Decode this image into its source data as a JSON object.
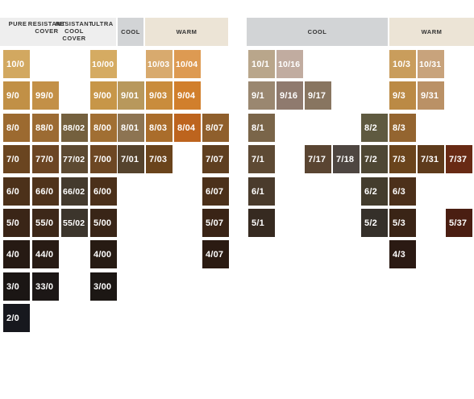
{
  "headers": {
    "pure": "PURE",
    "resistant_cover": "RESISTANT COVER",
    "resistant_cool_cover": "RESISTANT COOL COVER",
    "ultra": "ULTRA",
    "cool_left": "COOL",
    "warm_left": "WARM",
    "cool_right": "COOL",
    "warm_right": "WARM"
  },
  "header_colors": {
    "white": "#eeeeee",
    "cool": "#d2d4d6",
    "warm": "#ece4d6"
  },
  "rows": [
    "10",
    "9",
    "8",
    "7",
    "6",
    "5",
    "4",
    "3",
    "2"
  ],
  "left_columns": [
    "pure",
    "resistant_cover",
    "resistant_cool_cover",
    "ultra",
    "cool",
    "warm_3",
    "warm_4",
    "warm_07"
  ],
  "right_columns": [
    "c1",
    "c16",
    "c17",
    "c18",
    "c2",
    "w3",
    "w31",
    "w37"
  ],
  "swatches": [
    {
      "label": "10/0",
      "row": 0,
      "col": 0,
      "color": "#d2a860"
    },
    {
      "label": "10/00",
      "row": 0,
      "col": 3,
      "color": "#d5ab62"
    },
    {
      "label": "10/03",
      "row": 0,
      "col": 5,
      "color": "#d8aa6e"
    },
    {
      "label": "10/04",
      "row": 0,
      "col": 6,
      "color": "#dd9a52"
    },
    {
      "label": "9/0",
      "row": 1,
      "col": 0,
      "color": "#c19046"
    },
    {
      "label": "99/0",
      "row": 1,
      "col": 1,
      "color": "#c39047"
    },
    {
      "label": "9/00",
      "row": 1,
      "col": 3,
      "color": "#c79648"
    },
    {
      "label": "9/01",
      "row": 1,
      "col": 4,
      "color": "#b8985c"
    },
    {
      "label": "9/03",
      "row": 1,
      "col": 5,
      "color": "#c98c3c"
    },
    {
      "label": "9/04",
      "row": 1,
      "col": 6,
      "color": "#d17f2c"
    },
    {
      "label": "8/0",
      "row": 2,
      "col": 0,
      "color": "#9c6a30"
    },
    {
      "label": "88/0",
      "row": 2,
      "col": 1,
      "color": "#9c6b33"
    },
    {
      "label": "88/02",
      "row": 2,
      "col": 2,
      "color": "#74603e"
    },
    {
      "label": "8/00",
      "row": 2,
      "col": 3,
      "color": "#a16f33"
    },
    {
      "label": "8/01",
      "row": 2,
      "col": 4,
      "color": "#8d7452"
    },
    {
      "label": "8/03",
      "row": 2,
      "col": 5,
      "color": "#aa6d2b"
    },
    {
      "label": "8/04",
      "row": 2,
      "col": 6,
      "color": "#bd641e"
    },
    {
      "label": "8/07",
      "row": 2,
      "col": 7,
      "color": "#8f5f2c"
    },
    {
      "label": "7/0",
      "row": 3,
      "col": 0,
      "color": "#6a4520"
    },
    {
      "label": "77/0",
      "row": 3,
      "col": 1,
      "color": "#6c4624"
    },
    {
      "label": "77/02",
      "row": 3,
      "col": 2,
      "color": "#5d4a32"
    },
    {
      "label": "7/00",
      "row": 3,
      "col": 3,
      "color": "#6d4723"
    },
    {
      "label": "7/01",
      "row": 3,
      "col": 4,
      "color": "#55432d"
    },
    {
      "label": "7/03",
      "row": 3,
      "col": 5,
      "color": "#6a441c"
    },
    {
      "label": "7/07",
      "row": 3,
      "col": 7,
      "color": "#5f3f20"
    },
    {
      "label": "6/0",
      "row": 4,
      "col": 0,
      "color": "#4c311a"
    },
    {
      "label": "66/0",
      "row": 4,
      "col": 1,
      "color": "#4f331b"
    },
    {
      "label": "66/02",
      "row": 4,
      "col": 2,
      "color": "#443a2d"
    },
    {
      "label": "6/00",
      "row": 4,
      "col": 3,
      "color": "#4b301a"
    },
    {
      "label": "6/07",
      "row": 4,
      "col": 7,
      "color": "#4b301a"
    },
    {
      "label": "5/0",
      "row": 5,
      "col": 0,
      "color": "#3a2517"
    },
    {
      "label": "55/0",
      "row": 5,
      "col": 1,
      "color": "#3d2819"
    },
    {
      "label": "55/02",
      "row": 5,
      "col": 2,
      "color": "#3c352c"
    },
    {
      "label": "5/00",
      "row": 5,
      "col": 3,
      "color": "#392517"
    },
    {
      "label": "5/07",
      "row": 5,
      "col": 7,
      "color": "#3a2416"
    },
    {
      "label": "4/0",
      "row": 6,
      "col": 0,
      "color": "#261a13"
    },
    {
      "label": "44/0",
      "row": 6,
      "col": 1,
      "color": "#281b14"
    },
    {
      "label": "4/00",
      "row": 6,
      "col": 3,
      "color": "#271b13"
    },
    {
      "label": "4/07",
      "row": 6,
      "col": 7,
      "color": "#2b1b12"
    },
    {
      "label": "3/0",
      "row": 7,
      "col": 0,
      "color": "#1b1614"
    },
    {
      "label": "33/0",
      "row": 7,
      "col": 1,
      "color": "#1c1716"
    },
    {
      "label": "3/00",
      "row": 7,
      "col": 3,
      "color": "#1c1714"
    },
    {
      "label": "2/0",
      "row": 8,
      "col": 0,
      "color": "#17181e"
    },
    {
      "label": "10/1",
      "row": 0,
      "col": 8,
      "color": "#b9a68b"
    },
    {
      "label": "10/16",
      "row": 0,
      "col": 9,
      "color": "#c1aca0"
    },
    {
      "label": "10/3",
      "row": 0,
      "col": 13,
      "color": "#c99d5c"
    },
    {
      "label": "10/31",
      "row": 0,
      "col": 14,
      "color": "#c8a37c"
    },
    {
      "label": "9/1",
      "row": 1,
      "col": 8,
      "color": "#9a8770"
    },
    {
      "label": "9/16",
      "row": 1,
      "col": 9,
      "color": "#8f7a6e"
    },
    {
      "label": "9/17",
      "row": 1,
      "col": 10,
      "color": "#887560"
    },
    {
      "label": "9/3",
      "row": 1,
      "col": 13,
      "color": "#bb8a45"
    },
    {
      "label": "9/31",
      "row": 1,
      "col": 14,
      "color": "#ba9166"
    },
    {
      "label": "8/1",
      "row": 2,
      "col": 8,
      "color": "#7a6549"
    },
    {
      "label": "8/2",
      "row": 2,
      "col": 12,
      "color": "#5f5a40"
    },
    {
      "label": "8/3",
      "row": 2,
      "col": 13,
      "color": "#946530"
    },
    {
      "label": "7/1",
      "row": 3,
      "col": 8,
      "color": "#5e4a34"
    },
    {
      "label": "7/17",
      "row": 3,
      "col": 10,
      "color": "#5a4532"
    },
    {
      "label": "7/18",
      "row": 3,
      "col": 11,
      "color": "#4e4641"
    },
    {
      "label": "7/2",
      "row": 3,
      "col": 12,
      "color": "#4e4734"
    },
    {
      "label": "7/3",
      "row": 3,
      "col": 13,
      "color": "#6a441c"
    },
    {
      "label": "7/31",
      "row": 3,
      "col": 14,
      "color": "#5e3b1c"
    },
    {
      "label": "7/37",
      "row": 3,
      "col": 15,
      "color": "#682a14"
    },
    {
      "label": "6/1",
      "row": 4,
      "col": 8,
      "color": "#4a3b2c"
    },
    {
      "label": "6/2",
      "row": 4,
      "col": 12,
      "color": "#433c2d"
    },
    {
      "label": "6/3",
      "row": 4,
      "col": 13,
      "color": "#4c301a"
    },
    {
      "label": "5/1",
      "row": 5,
      "col": 8,
      "color": "#362a20"
    },
    {
      "label": "5/2",
      "row": 5,
      "col": 12,
      "color": "#35302a"
    },
    {
      "label": "5/3",
      "row": 5,
      "col": 13,
      "color": "#3a2416"
    },
    {
      "label": "5/37",
      "row": 5,
      "col": 15,
      "color": "#4a1e12"
    },
    {
      "label": "4/3",
      "row": 6,
      "col": 13,
      "color": "#2b1a13"
    }
  ]
}
